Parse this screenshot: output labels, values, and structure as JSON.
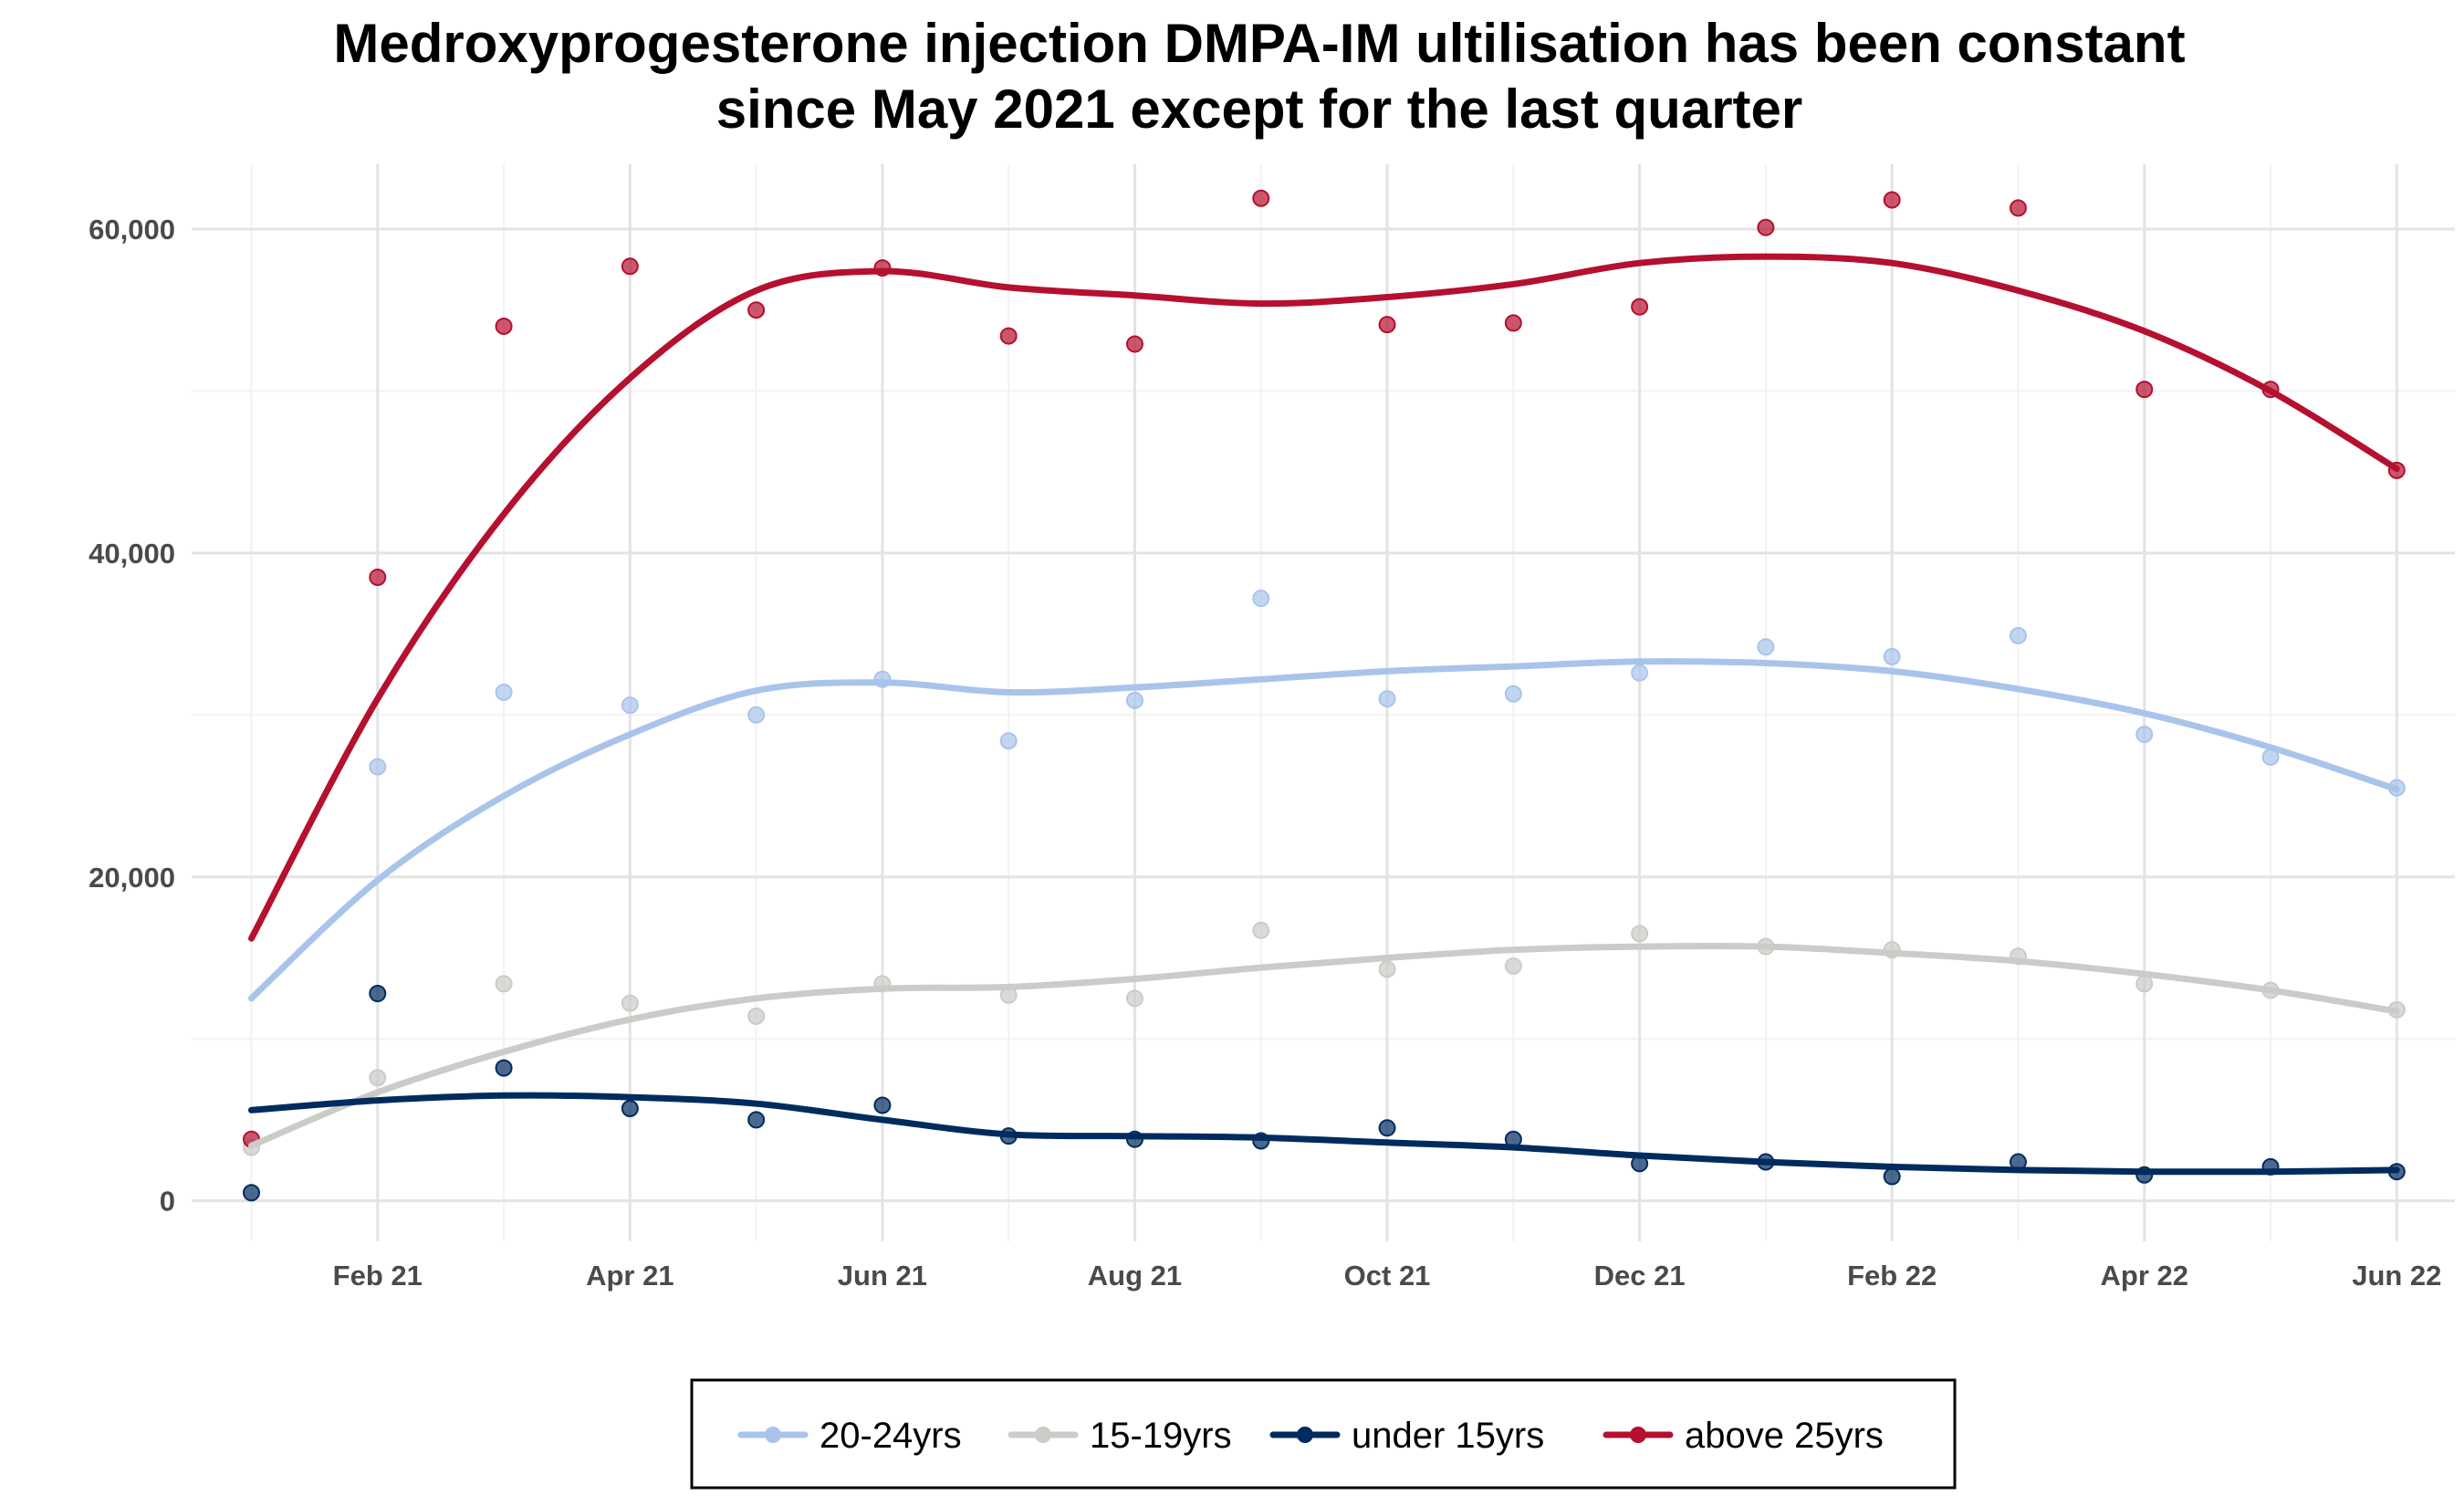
{
  "chart_data": {
    "type": "line",
    "title_lines": [
      "Medroxyprogesterone injection DMPA-IM ultilisation has been constant",
      "since May 2021 except for the last quarter"
    ],
    "xlabel": "",
    "ylabel": "",
    "x": [
      "2021-01",
      "2021-02",
      "2021-03",
      "2021-04",
      "2021-05",
      "2021-06",
      "2021-07",
      "2021-08",
      "2021-09",
      "2021-10",
      "2021-11",
      "2021-12",
      "2022-01",
      "2022-02",
      "2022-03",
      "2022-04",
      "2022-05",
      "2022-06"
    ],
    "x_ticks": [
      {
        "x": "2021-02",
        "label": "Feb 21"
      },
      {
        "x": "2021-04",
        "label": "Apr 21"
      },
      {
        "x": "2021-06",
        "label": "Jun 21"
      },
      {
        "x": "2021-08",
        "label": "Aug 21"
      },
      {
        "x": "2021-10",
        "label": "Oct 21"
      },
      {
        "x": "2021-12",
        "label": "Dec 21"
      },
      {
        "x": "2022-02",
        "label": "Feb 22"
      },
      {
        "x": "2022-04",
        "label": "Apr 22"
      },
      {
        "x": "2022-06",
        "label": "Jun 22"
      }
    ],
    "xlim": [
      "2020-12-17",
      "2022-06-15"
    ],
    "ylim": [
      -2500,
      64000
    ],
    "y_ticks": [
      {
        "value": 0,
        "label": "0"
      },
      {
        "value": 20000,
        "label": "20,000"
      },
      {
        "value": 40000,
        "label": "40,000"
      },
      {
        "value": 60000,
        "label": "60,000"
      }
    ],
    "grid": true,
    "legend_position": "bottom",
    "series": [
      {
        "name": "20-24yrs",
        "color": "#a9c4eb",
        "points": [
          null,
          26800,
          31400,
          30600,
          30000,
          32200,
          28400,
          30900,
          37200,
          31000,
          31300,
          32600,
          34200,
          33600,
          34900,
          28800,
          27400,
          25500
        ],
        "smooth": [
          12500,
          19800,
          25000,
          28800,
          31500,
          32000,
          31400,
          31700,
          32200,
          32700,
          33000,
          33300,
          33200,
          32700,
          31600,
          30100,
          28000,
          25400
        ]
      },
      {
        "name": "15-19yrs",
        "color": "#cbcbc8",
        "points": [
          3300,
          7600,
          13400,
          12200,
          11400,
          13400,
          12700,
          12500,
          16700,
          14300,
          14500,
          16500,
          15700,
          15500,
          15100,
          13400,
          13000,
          11800
        ],
        "smooth": [
          3400,
          6700,
          9200,
          11200,
          12500,
          13100,
          13200,
          13700,
          14400,
          15000,
          15500,
          15700,
          15700,
          15300,
          14800,
          14000,
          13000,
          11700
        ]
      },
      {
        "name": "under 15yrs",
        "color": "#002b5e",
        "points": [
          500,
          12800,
          8200,
          5700,
          5000,
          5900,
          4000,
          3800,
          3700,
          4500,
          3800,
          2300,
          2400,
          1500,
          2400,
          1600,
          2100,
          1800
        ],
        "smooth": [
          5600,
          6200,
          6500,
          6400,
          6000,
          5000,
          4100,
          4000,
          3900,
          3600,
          3300,
          2800,
          2400,
          2100,
          1900,
          1800,
          1800,
          1900
        ]
      },
      {
        "name": "above 25yrs",
        "color": "#b5102f",
        "points": [
          3800,
          38500,
          54000,
          57700,
          55000,
          57600,
          53400,
          52900,
          61900,
          54100,
          54200,
          55200,
          60100,
          61800,
          61300,
          50100,
          50100,
          45100
        ],
        "smooth": [
          16200,
          31000,
          42400,
          50800,
          56200,
          57400,
          56400,
          55900,
          55400,
          55800,
          56600,
          57900,
          58300,
          57900,
          56200,
          53700,
          50000,
          45200
        ]
      }
    ]
  }
}
